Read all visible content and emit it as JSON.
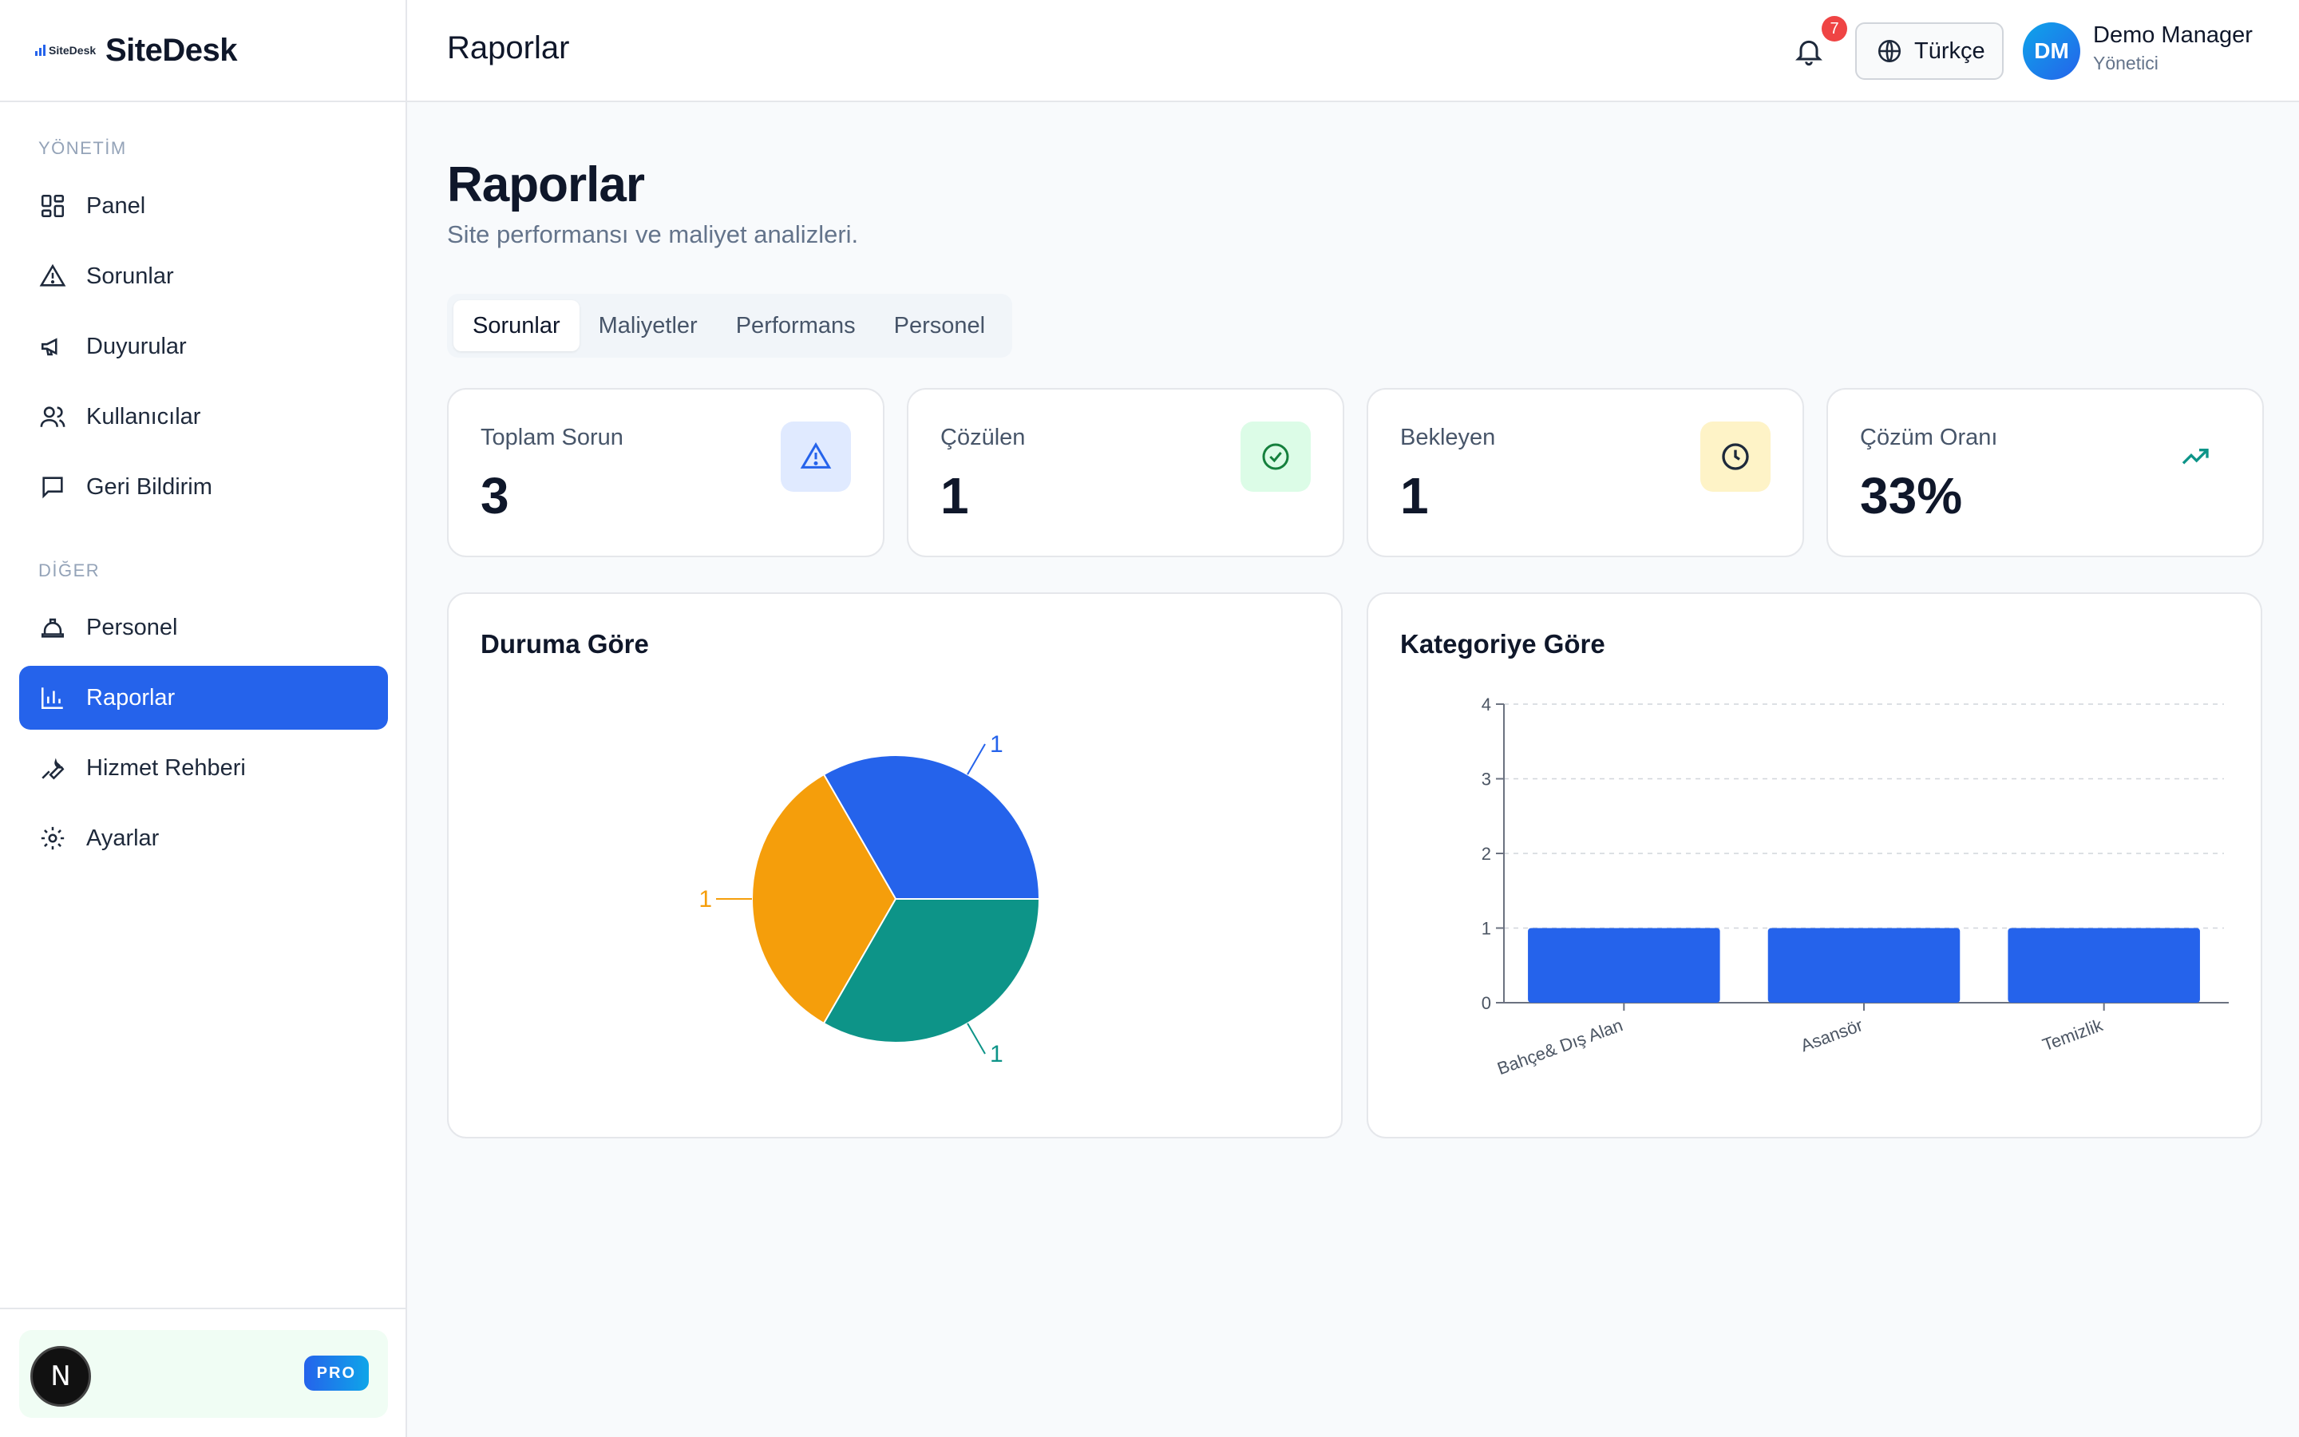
{
  "brand": {
    "logo_text": "SiteDesk",
    "name": "SiteDesk"
  },
  "sidebar": {
    "section_management": "YÖNETİM",
    "section_other": "DİĞER",
    "items": [
      {
        "label": "Panel",
        "icon": "dashboard-icon"
      },
      {
        "label": "Sorunlar",
        "icon": "warning-icon"
      },
      {
        "label": "Duyurular",
        "icon": "megaphone-icon"
      },
      {
        "label": "Kullanıcılar",
        "icon": "users-icon"
      },
      {
        "label": "Geri Bildirim",
        "icon": "message-icon"
      },
      {
        "label": "Personel",
        "icon": "hard-hat-icon"
      },
      {
        "label": "Raporlar",
        "icon": "bar-chart-icon"
      },
      {
        "label": "Hizmet Rehberi",
        "icon": "wrench-icon"
      },
      {
        "label": "Ayarlar",
        "icon": "gear-icon"
      }
    ],
    "footer": {
      "badge_letter": "N",
      "pro_label": "PRO"
    }
  },
  "header": {
    "title": "Raporlar",
    "notification_count": "7",
    "language": "Türkçe",
    "user": {
      "initials": "DM",
      "name": "Demo Manager",
      "role": "Yönetici"
    }
  },
  "main": {
    "title": "Raporlar",
    "subtitle": "Site performansı ve maliyet analizleri.",
    "tabs": [
      "Sorunlar",
      "Maliyetler",
      "Performans",
      "Personel"
    ],
    "stats": [
      {
        "label": "Toplam Sorun",
        "value": "3",
        "icon": "warning-icon"
      },
      {
        "label": "Çözülen",
        "value": "1",
        "icon": "check-circle-icon"
      },
      {
        "label": "Bekleyen",
        "value": "1",
        "icon": "clock-icon"
      },
      {
        "label": "Çözüm Oranı",
        "value": "33%",
        "icon": "trending-up-icon"
      }
    ]
  },
  "chart_data": [
    {
      "type": "pie",
      "title": "Duruma Göre",
      "values": [
        1,
        1,
        1
      ],
      "colors": [
        "#2563eb",
        "#f59e0b",
        "#0d9488"
      ],
      "data_labels": [
        "1",
        "1",
        "1"
      ]
    },
    {
      "type": "bar",
      "title": "Kategoriye Göre",
      "categories": [
        "Bahçe& Dış Alan",
        "Asansör",
        "Temizlik"
      ],
      "values": [
        1,
        1,
        1
      ],
      "ylim": [
        0,
        4
      ],
      "yticks": [
        0,
        1,
        2,
        3,
        4
      ],
      "grid": true,
      "color": "#2563eb"
    }
  ]
}
